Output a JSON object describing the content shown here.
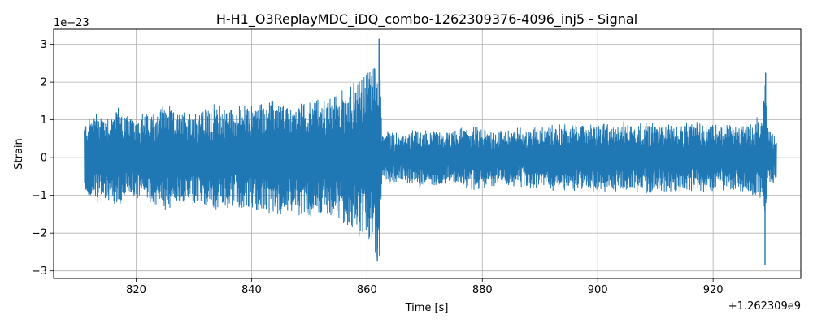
{
  "chart_data": {
    "type": "line",
    "title": "H-H1_O3ReplayMDC_iDQ_combo-1262309376-4096_inj5 - Signal",
    "xlabel": "Time [s]",
    "ylabel": "Strain",
    "x_offset_label": "+1.262309e9",
    "y_scale_label": "1e−23",
    "xlim": [
      805.7,
      935.2
    ],
    "ylim": [
      -3.2,
      3.4
    ],
    "x_ticks": [
      820,
      840,
      860,
      880,
      900,
      920
    ],
    "x_tick_labels": [
      "820",
      "840",
      "860",
      "880",
      "900",
      "920"
    ],
    "y_ticks": [
      -3,
      -2,
      -1,
      0,
      1,
      2,
      3
    ],
    "y_tick_labels": [
      "−3",
      "−2",
      "−1",
      "0",
      "1",
      "2",
      "3"
    ],
    "grid": true,
    "series": [
      {
        "color": "#1f77b4",
        "x_range": [
          811,
          931
        ],
        "envelope": [
          {
            "x": 811,
            "amp": 0.9
          },
          {
            "x": 813,
            "amp": 1.2
          },
          {
            "x": 815,
            "amp": 1.1
          },
          {
            "x": 817,
            "amp": 1.35
          },
          {
            "x": 819,
            "amp": 1.0
          },
          {
            "x": 821,
            "amp": 1.15
          },
          {
            "x": 823,
            "amp": 1.2
          },
          {
            "x": 825,
            "amp": 1.45
          },
          {
            "x": 827,
            "amp": 1.1
          },
          {
            "x": 829,
            "amp": 1.3
          },
          {
            "x": 831,
            "amp": 1.2
          },
          {
            "x": 833,
            "amp": 1.35
          },
          {
            "x": 835,
            "amp": 1.4
          },
          {
            "x": 837,
            "amp": 1.3
          },
          {
            "x": 839,
            "amp": 1.35
          },
          {
            "x": 841,
            "amp": 1.4
          },
          {
            "x": 843,
            "amp": 1.5
          },
          {
            "x": 845,
            "amp": 1.45
          },
          {
            "x": 847,
            "amp": 1.4
          },
          {
            "x": 849,
            "amp": 1.5
          },
          {
            "x": 851,
            "amp": 1.55
          },
          {
            "x": 853,
            "amp": 1.5
          },
          {
            "x": 855,
            "amp": 1.7
          },
          {
            "x": 857,
            "amp": 1.9
          },
          {
            "x": 859,
            "amp": 2.1
          },
          {
            "x": 861,
            "amp": 2.5
          },
          {
            "x": 862.2,
            "amp": 2.8
          },
          {
            "x": 862.6,
            "amp": 0.75
          },
          {
            "x": 866,
            "amp": 0.6
          },
          {
            "x": 870,
            "amp": 0.75
          },
          {
            "x": 874,
            "amp": 0.65
          },
          {
            "x": 878,
            "amp": 0.8
          },
          {
            "x": 882,
            "amp": 0.7
          },
          {
            "x": 886,
            "amp": 0.75
          },
          {
            "x": 890,
            "amp": 0.8
          },
          {
            "x": 894,
            "amp": 0.85
          },
          {
            "x": 898,
            "amp": 0.85
          },
          {
            "x": 902,
            "amp": 0.9
          },
          {
            "x": 906,
            "amp": 0.9
          },
          {
            "x": 910,
            "amp": 0.9
          },
          {
            "x": 914,
            "amp": 0.85
          },
          {
            "x": 918,
            "amp": 0.9
          },
          {
            "x": 922,
            "amp": 0.85
          },
          {
            "x": 926,
            "amp": 0.9
          },
          {
            "x": 928.5,
            "amp": 1.1
          },
          {
            "x": 929,
            "amp": 2.2
          },
          {
            "x": 929.5,
            "amp": 0.8
          },
          {
            "x": 931,
            "amp": 0.6
          }
        ],
        "peaks": [
          {
            "x": 862.1,
            "value": 3.15
          },
          {
            "x": 861.8,
            "value": -2.75
          },
          {
            "x": 929.1,
            "value": 2.25
          },
          {
            "x": 929.0,
            "value": -2.85
          }
        ]
      }
    ]
  }
}
